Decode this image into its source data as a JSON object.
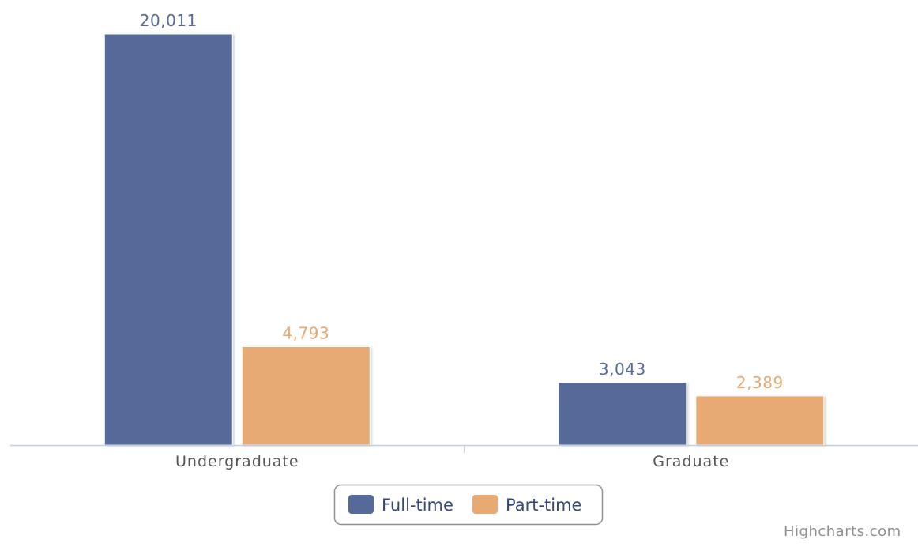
{
  "chart_data": {
    "type": "bar",
    "title": "",
    "xlabel": "",
    "ylabel": "",
    "categories": [
      "Undergraduate",
      "Graduate"
    ],
    "series": [
      {
        "name": "Full-time",
        "values": [
          20011,
          3043
        ],
        "labels": [
          "20,011",
          "3,043"
        ],
        "color": "#566a9a"
      },
      {
        "name": "Part-time",
        "values": [
          4793,
          2389
        ],
        "labels": [
          "4,793",
          "2,389"
        ],
        "color": "#e8aa74"
      }
    ],
    "ylim": [
      0,
      20011
    ],
    "grid": false,
    "legend_position": "bottom-center"
  },
  "colors": {
    "axis": "#c0d0e0",
    "category_label": "#555555",
    "legend_text": "#34477a",
    "legend_border": "#909090",
    "credit": "#909090"
  },
  "credit": "Highcharts.com"
}
